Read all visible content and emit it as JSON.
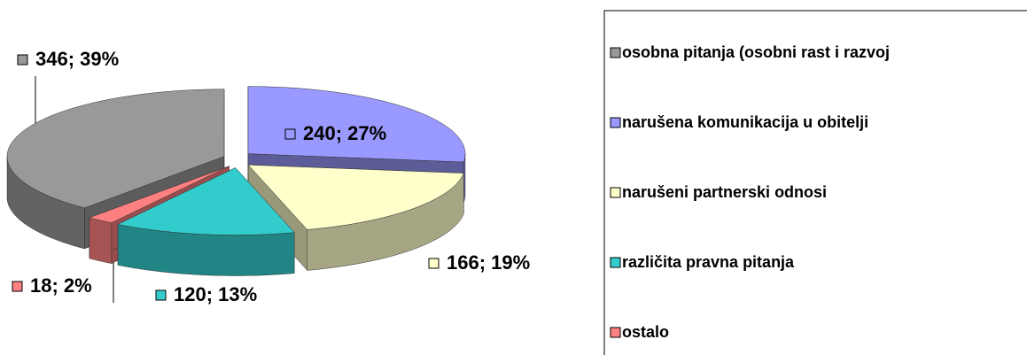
{
  "chart_data": {
    "type": "pie",
    "categories": [
      "narušena komunikacija u obitelji",
      "narušeni partnerski odnosi",
      "različita pravna pitanja",
      "ostalo",
      "osobna pitanja (osobni rast i razvoj"
    ],
    "values": [
      240,
      166,
      120,
      18,
      346
    ],
    "value_labels": [
      "240; 27%",
      "166; 19%",
      "120; 13%",
      "18; 2%",
      "346; 39%"
    ],
    "colors": [
      "#9999ff",
      "#ffffcc",
      "#33cccc",
      "#ff8080",
      "#999999"
    ],
    "legend_order": [
      4,
      0,
      1,
      2,
      3
    ],
    "legend": "right"
  }
}
